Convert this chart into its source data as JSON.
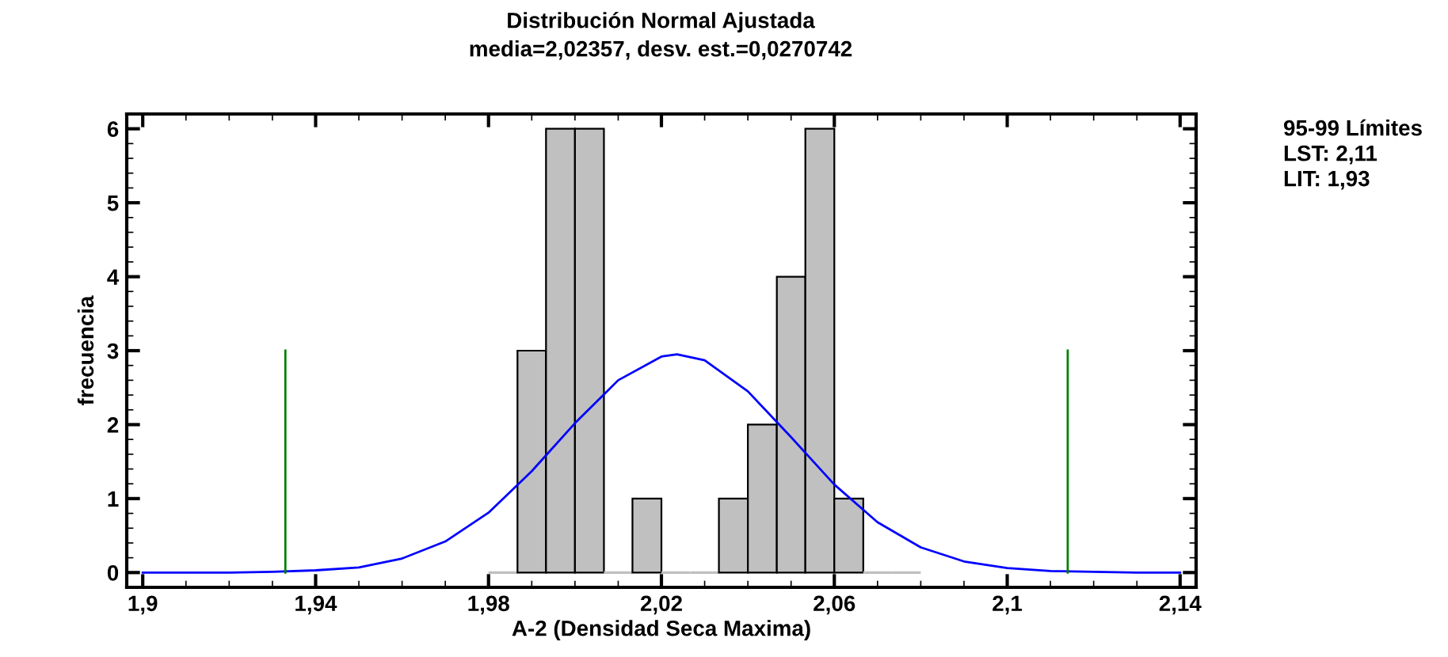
{
  "chart_data": {
    "type": "histogram",
    "title": "Distribución Normal Ajustada",
    "subtitle": "media=2,02357, desv. est.=0,0270742",
    "xlabel": "A-2 (Densidad Seca Maxima)",
    "ylabel": "frecuencia",
    "bins": [
      1.98,
      1.9867,
      1.9933,
      2.0,
      2.0067,
      2.0133,
      2.02,
      2.0267,
      2.0333,
      2.04,
      2.0467,
      2.0533,
      2.06,
      2.0667,
      2.0733,
      2.08
    ],
    "values": [
      0,
      3,
      6,
      6,
      0,
      1,
      0,
      0,
      1,
      2,
      4,
      6,
      1,
      0,
      0
    ],
    "color": "#c0c0c0",
    "series": [
      {
        "type": "line",
        "color": "#0000ff",
        "x": [
          1.9,
          1.92,
          1.93,
          1.94,
          1.95,
          1.96,
          1.97,
          1.98,
          1.99,
          2.0,
          2.01,
          2.02,
          2.0236,
          2.03,
          2.04,
          2.05,
          2.06,
          2.07,
          2.08,
          2.09,
          2.1,
          2.11,
          2.12,
          2.13,
          2.14
        ],
        "values": [
          0,
          0,
          0.01,
          0.03,
          0.07,
          0.19,
          0.42,
          0.81,
          1.37,
          2.02,
          2.6,
          2.92,
          2.95,
          2.87,
          2.45,
          1.83,
          1.19,
          0.68,
          0.34,
          0.15,
          0.06,
          0.02,
          0.01,
          0,
          0
        ]
      },
      {
        "type": "line",
        "color": "#008000",
        "x": [
          1.933,
          1.933
        ],
        "values": [
          0,
          3
        ]
      },
      {
        "type": "line",
        "color": "#008000",
        "x": [
          2.114,
          2.114
        ],
        "values": [
          0,
          3
        ]
      }
    ],
    "xlim": [
      1.8963,
      2.1437
    ],
    "ylim": [
      -0.2,
      6.2
    ],
    "xticks": [
      {
        "value": 1.9,
        "label": "1,9"
      },
      {
        "value": 1.94,
        "label": "1,94"
      },
      {
        "value": 1.98,
        "label": "1,98"
      },
      {
        "value": 2.02,
        "label": "2,02"
      },
      {
        "value": 2.06,
        "label": "2,06"
      },
      {
        "value": 2.1,
        "label": "2,1"
      },
      {
        "value": 2.14,
        "label": "2,14"
      }
    ],
    "yticks": [
      0,
      1,
      2,
      3,
      4,
      5,
      6
    ],
    "annotations": [
      "95-99 Límites",
      "LST: 2,11",
      "LIT: 1,93"
    ]
  }
}
